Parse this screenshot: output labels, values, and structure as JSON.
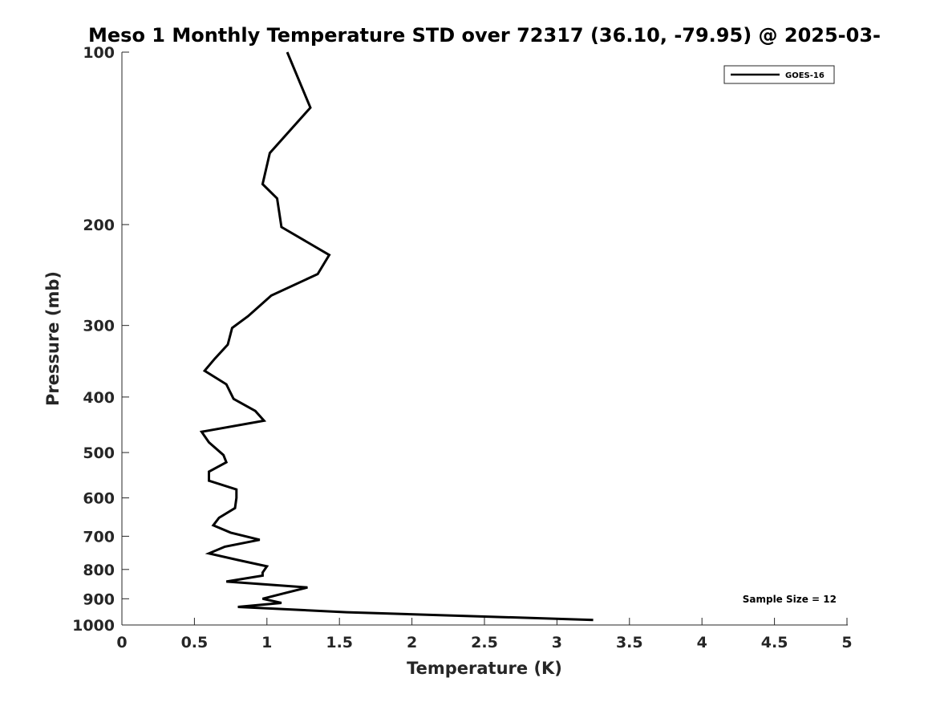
{
  "chart_data": {
    "type": "line",
    "title": "Meso 1 Monthly Temperature STD over 72317 (36.10, -79.95) @ 2025-03-",
    "xlabel": "Temperature (K)",
    "ylabel": "Pressure (mb)",
    "xlim": [
      0,
      5
    ],
    "ylim": [
      100,
      1000
    ],
    "y_scale": "log",
    "y_reversed": true,
    "x_ticks": [
      "0",
      "0.5",
      "1",
      "1.5",
      "2",
      "2.5",
      "3",
      "3.5",
      "4",
      "4.5",
      "5"
    ],
    "x_tick_values": [
      0,
      0.5,
      1,
      1.5,
      2,
      2.5,
      3,
      3.5,
      4,
      4.5,
      5
    ],
    "y_ticks": [
      "100",
      "200",
      "300",
      "400",
      "500",
      "600",
      "700",
      "800",
      "900",
      "1000"
    ],
    "y_tick_values": [
      100,
      200,
      300,
      400,
      500,
      600,
      700,
      800,
      900,
      1000
    ],
    "grid": false,
    "legend_position": "top-right",
    "series": [
      {
        "name": "GOES-16",
        "color": "#000000",
        "points": [
          [
            1.14,
            100
          ],
          [
            1.3,
            125
          ],
          [
            1.02,
            150
          ],
          [
            0.97,
            170
          ],
          [
            1.07,
            180
          ],
          [
            1.1,
            202
          ],
          [
            1.43,
            226
          ],
          [
            1.35,
            244
          ],
          [
            1.03,
            266
          ],
          [
            0.87,
            289
          ],
          [
            0.76,
            303
          ],
          [
            0.73,
            324
          ],
          [
            0.64,
            343
          ],
          [
            0.57,
            360
          ],
          [
            0.72,
            380
          ],
          [
            0.77,
            403
          ],
          [
            0.92,
            423
          ],
          [
            0.98,
            440
          ],
          [
            0.55,
            460
          ],
          [
            0.6,
            480
          ],
          [
            0.7,
            505
          ],
          [
            0.72,
            520
          ],
          [
            0.6,
            540
          ],
          [
            0.6,
            560
          ],
          [
            0.79,
            580
          ],
          [
            0.79,
            600
          ],
          [
            0.78,
            625
          ],
          [
            0.67,
            650
          ],
          [
            0.63,
            670
          ],
          [
            0.75,
            690
          ],
          [
            0.95,
            710
          ],
          [
            0.71,
            730
          ],
          [
            0.6,
            750
          ],
          [
            0.8,
            770
          ],
          [
            1.0,
            790
          ],
          [
            0.97,
            810
          ],
          [
            0.97,
            820
          ],
          [
            0.72,
            840
          ],
          [
            1.28,
            860
          ],
          [
            1.12,
            880
          ],
          [
            0.97,
            900
          ],
          [
            1.1,
            915
          ],
          [
            0.8,
            930
          ],
          [
            1.55,
            950
          ],
          [
            3.25,
            980
          ]
        ]
      }
    ],
    "annotations": [
      "Sample Size = 12"
    ]
  }
}
